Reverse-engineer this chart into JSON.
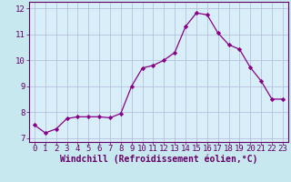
{
  "x": [
    0,
    1,
    2,
    3,
    4,
    5,
    6,
    7,
    8,
    9,
    10,
    11,
    12,
    13,
    14,
    15,
    16,
    17,
    18,
    19,
    20,
    21,
    22,
    23
  ],
  "y": [
    7.5,
    7.2,
    7.35,
    7.75,
    7.82,
    7.82,
    7.82,
    7.78,
    7.95,
    9.0,
    9.7,
    9.8,
    10.0,
    10.3,
    11.3,
    11.82,
    11.75,
    11.05,
    10.6,
    10.42,
    9.72,
    9.2,
    8.5,
    8.5
  ],
  "line_color": "#880088",
  "marker": "D",
  "marker_size": 2.2,
  "bg_color": "#c8e8f0",
  "plot_bg_color": "#d8eef8",
  "grid_color": "#b0b8d8",
  "xlabel": "Windchill (Refroidissement éolien,°C)",
  "xlim": [
    -0.5,
    23.5
  ],
  "ylim": [
    6.85,
    12.25
  ],
  "yticks": [
    7,
    8,
    9,
    10,
    11,
    12
  ],
  "xticks": [
    0,
    1,
    2,
    3,
    4,
    5,
    6,
    7,
    8,
    9,
    10,
    11,
    12,
    13,
    14,
    15,
    16,
    17,
    18,
    19,
    20,
    21,
    22,
    23
  ],
  "xlabel_color": "#660066",
  "tick_color": "#660066",
  "border_color": "#660066",
  "xlabel_fontsize": 7.0,
  "tick_fontsize": 6.5,
  "title_color": "#660066"
}
